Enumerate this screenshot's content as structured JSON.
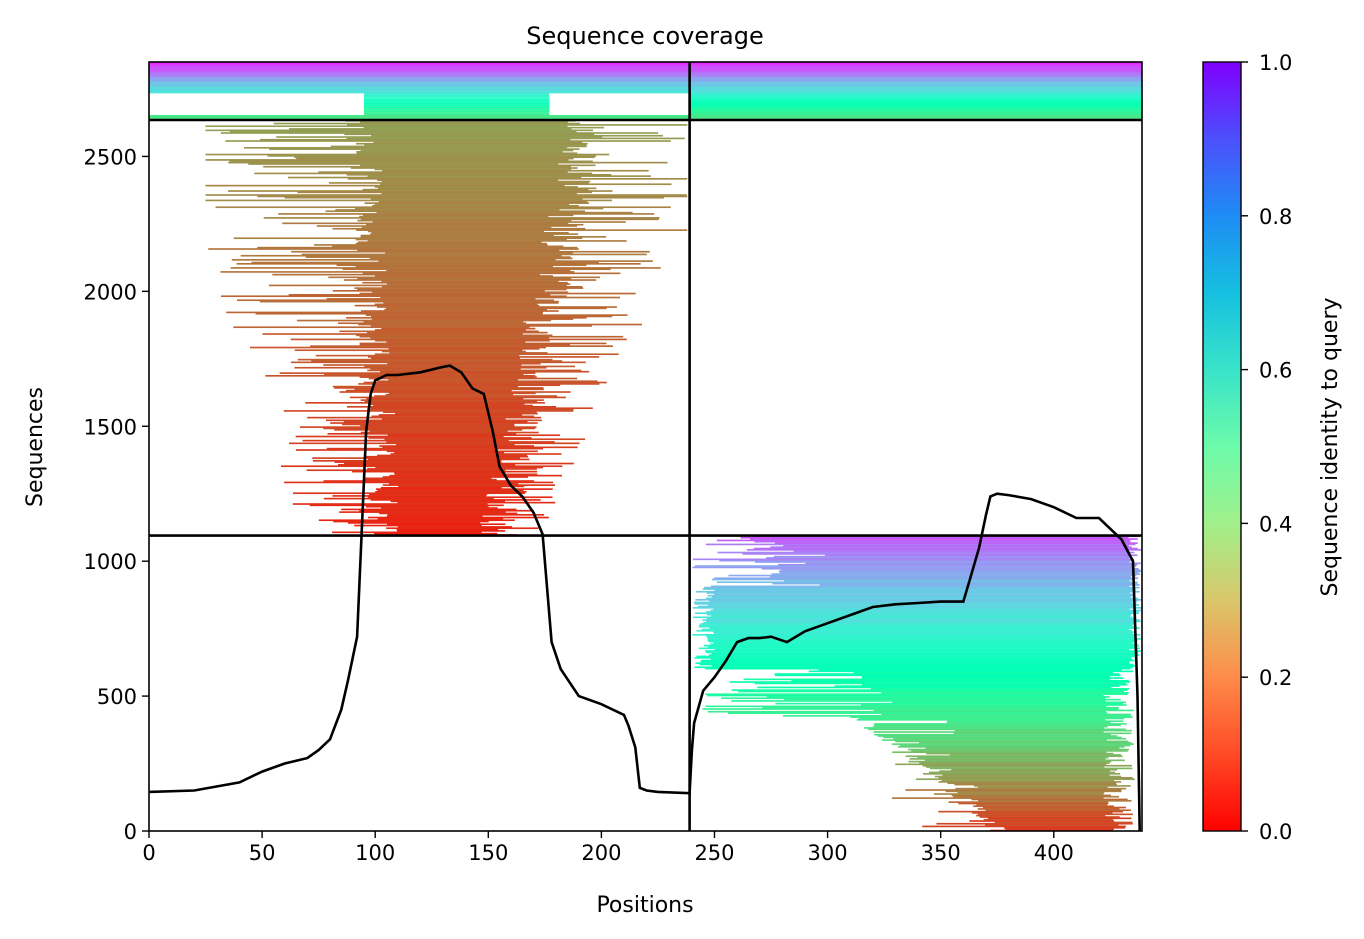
{
  "chart_data": {
    "type": "heatmap",
    "title": "Sequence coverage",
    "xlabel": "Positions",
    "ylabel": "Sequences",
    "xlim": [
      0,
      439
    ],
    "ylim": [
      0,
      2850
    ],
    "x_ticks": [
      0,
      50,
      100,
      150,
      200,
      250,
      300,
      350,
      400
    ],
    "y_ticks": [
      0,
      500,
      1000,
      1500,
      2000,
      2500
    ],
    "colorbar": {
      "label": "Sequence identity to query",
      "range": [
        0,
        1
      ],
      "ticks": [
        "0.0",
        "0.2",
        "0.4",
        "0.6",
        "0.8",
        "1.0"
      ],
      "colormap": "rainbow_r"
    },
    "chain_boundary_position": 239,
    "group_boundaries_sequences": [
      1095,
      2635
    ],
    "coverage_depth_curve": {
      "color": "#000000",
      "x": [
        0,
        20,
        40,
        50,
        60,
        70,
        75,
        80,
        85,
        88,
        92,
        94,
        96,
        98,
        100,
        105,
        110,
        120,
        130,
        133,
        138,
        143,
        148,
        152,
        155,
        160,
        165,
        170,
        174,
        176,
        178,
        182,
        190,
        200,
        210,
        212,
        215,
        217,
        220,
        225,
        239,
        240,
        241,
        245,
        250,
        255,
        260,
        265,
        270,
        275,
        282,
        290,
        300,
        310,
        320,
        330,
        340,
        350,
        360,
        363,
        367,
        370,
        372,
        375,
        380,
        390,
        400,
        410,
        420,
        430,
        435,
        437,
        438
      ],
      "y": [
        145,
        150,
        180,
        220,
        250,
        270,
        300,
        340,
        450,
        560,
        720,
        1100,
        1480,
        1620,
        1670,
        1690,
        1690,
        1700,
        1720,
        1725,
        1700,
        1640,
        1620,
        1480,
        1350,
        1280,
        1240,
        1180,
        1100,
        900,
        700,
        600,
        500,
        470,
        430,
        390,
        310,
        160,
        150,
        145,
        140,
        300,
        400,
        520,
        570,
        630,
        700,
        715,
        715,
        720,
        700,
        740,
        770,
        800,
        830,
        840,
        845,
        850,
        850,
        935,
        1050,
        1170,
        1240,
        1250,
        1245,
        1230,
        1200,
        1160,
        1160,
        1080,
        1000,
        500,
        0
      ]
    }
  }
}
